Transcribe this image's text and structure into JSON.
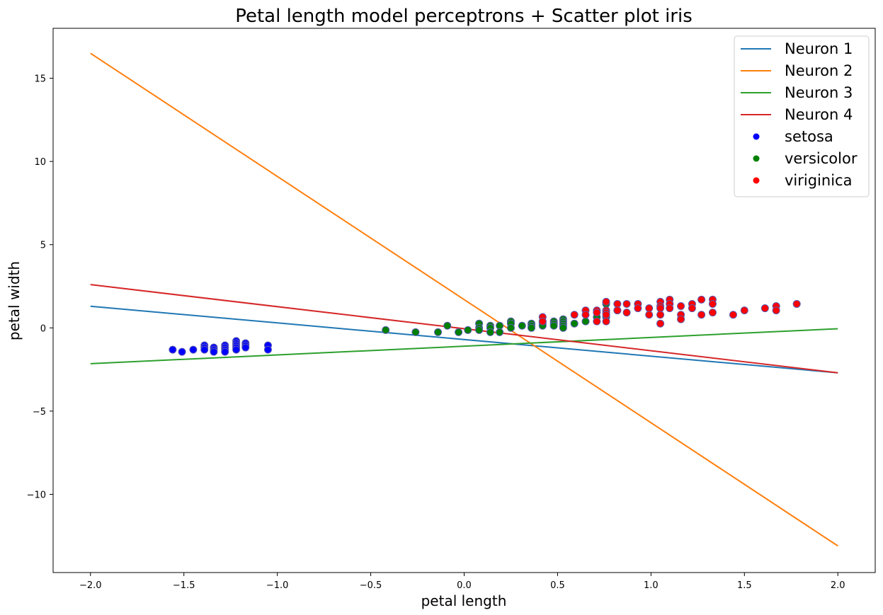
{
  "chart_data": {
    "type": "scatter",
    "title": "Petal length model perceptrons + Scatter plot iris",
    "xlabel": "petal length",
    "ylabel": "petal width",
    "xlim": [
      -2.2,
      2.2
    ],
    "ylim": [
      -14.7,
      18.0
    ],
    "xticks": [
      -2.0,
      -1.5,
      -1.0,
      -0.5,
      0.0,
      0.5,
      1.0,
      1.5,
      2.0
    ],
    "xtick_labels": [
      "−2.0",
      "−1.5",
      "−1.0",
      "−0.5",
      "0.0",
      "0.5",
      "1.0",
      "1.5",
      "2.0"
    ],
    "yticks": [
      -10,
      -5,
      0,
      5,
      10,
      15
    ],
    "ytick_labels": [
      "−10",
      "−5",
      "0",
      "5",
      "10",
      "15"
    ],
    "legend_position": "top-right",
    "lines": [
      {
        "name": "Neuron 1",
        "color": "#1f77b4",
        "x": [
          -2.0,
          2.0
        ],
        "y": [
          1.3,
          -2.7
        ]
      },
      {
        "name": "Neuron 2",
        "color": "#ff7f0e",
        "x": [
          -2.0,
          2.0
        ],
        "y": [
          16.5,
          -13.1
        ]
      },
      {
        "name": "Neuron 3",
        "color": "#2ca02c",
        "x": [
          -2.0,
          2.0
        ],
        "y": [
          -2.15,
          -0.05
        ]
      },
      {
        "name": "Neuron 4",
        "color": "#d62728",
        "x": [
          -2.0,
          2.0
        ],
        "y": [
          2.6,
          -2.7
        ]
      }
    ],
    "scatter": [
      {
        "name": "setosa",
        "color": "#0000ff",
        "points": [
          [
            -1.56,
            -1.31
          ],
          [
            -1.51,
            -1.44
          ],
          [
            -1.45,
            -1.31
          ],
          [
            -1.39,
            -1.05
          ],
          [
            -1.39,
            -1.18
          ],
          [
            -1.39,
            -1.31
          ],
          [
            -1.34,
            -1.18
          ],
          [
            -1.34,
            -1.31
          ],
          [
            -1.34,
            -1.44
          ],
          [
            -1.28,
            -1.05
          ],
          [
            -1.28,
            -1.18
          ],
          [
            -1.28,
            -1.31
          ],
          [
            -1.28,
            -1.44
          ],
          [
            -1.22,
            -0.79
          ],
          [
            -1.22,
            -0.92
          ],
          [
            -1.22,
            -1.05
          ],
          [
            -1.22,
            -1.18
          ],
          [
            -1.22,
            -1.31
          ],
          [
            -1.17,
            -0.92
          ],
          [
            -1.17,
            -1.05
          ],
          [
            -1.17,
            -1.18
          ],
          [
            -1.05,
            -1.05
          ],
          [
            -1.05,
            -1.31
          ]
        ]
      },
      {
        "name": "versicolor",
        "color": "#008000",
        "points": [
          [
            -0.42,
            -0.13
          ],
          [
            -0.26,
            -0.26
          ],
          [
            -0.14,
            -0.26
          ],
          [
            -0.09,
            0.13
          ],
          [
            -0.03,
            -0.26
          ],
          [
            0.02,
            -0.13
          ],
          [
            0.08,
            0.26
          ],
          [
            0.08,
            0.0
          ],
          [
            0.08,
            -0.13
          ],
          [
            0.14,
            0.13
          ],
          [
            0.14,
            0.0
          ],
          [
            0.14,
            -0.26
          ],
          [
            0.19,
            0.13
          ],
          [
            0.19,
            -0.26
          ],
          [
            0.25,
            0.39
          ],
          [
            0.25,
            0.26
          ],
          [
            0.25,
            0.0
          ],
          [
            0.31,
            0.13
          ],
          [
            0.36,
            0.26
          ],
          [
            0.36,
            0.13
          ],
          [
            0.36,
            0.0
          ],
          [
            0.42,
            0.39
          ],
          [
            0.42,
            0.26
          ],
          [
            0.42,
            0.13
          ],
          [
            0.48,
            0.39
          ],
          [
            0.48,
            0.26
          ],
          [
            0.48,
            0.13
          ],
          [
            0.53,
            0.52
          ],
          [
            0.53,
            0.39
          ],
          [
            0.53,
            0.26
          ],
          [
            0.53,
            0.13
          ],
          [
            0.53,
            0.0
          ],
          [
            0.59,
            0.26
          ],
          [
            0.65,
            0.39
          ],
          [
            0.71,
            0.65
          ],
          [
            0.76,
            0.65
          ],
          [
            0.76,
            1.44
          ],
          [
            0.82,
            1.05
          ]
        ]
      },
      {
        "name": "viriginica",
        "color": "#ff0000",
        "points": [
          [
            0.42,
            0.65
          ],
          [
            0.42,
            0.39
          ],
          [
            0.59,
            0.79
          ],
          [
            0.65,
            1.05
          ],
          [
            0.65,
            0.79
          ],
          [
            0.71,
            1.05
          ],
          [
            0.71,
            0.92
          ],
          [
            0.71,
            0.39
          ],
          [
            0.76,
            1.57
          ],
          [
            0.76,
            1.05
          ],
          [
            0.76,
            0.92
          ],
          [
            0.76,
            0.79
          ],
          [
            0.76,
            0.39
          ],
          [
            0.82,
            1.44
          ],
          [
            0.82,
            1.05
          ],
          [
            0.87,
            1.44
          ],
          [
            0.87,
            0.92
          ],
          [
            0.93,
            1.44
          ],
          [
            0.93,
            1.18
          ],
          [
            0.99,
            1.18
          ],
          [
            0.99,
            0.79
          ],
          [
            1.05,
            1.57
          ],
          [
            1.05,
            1.31
          ],
          [
            1.05,
            1.18
          ],
          [
            1.05,
            0.79
          ],
          [
            1.05,
            0.26
          ],
          [
            1.1,
            1.7
          ],
          [
            1.1,
            1.44
          ],
          [
            1.1,
            1.18
          ],
          [
            1.16,
            1.31
          ],
          [
            1.16,
            0.79
          ],
          [
            1.16,
            0.52
          ],
          [
            1.22,
            1.44
          ],
          [
            1.22,
            1.18
          ],
          [
            1.27,
            1.7
          ],
          [
            1.27,
            0.79
          ],
          [
            1.33,
            1.7
          ],
          [
            1.33,
            1.44
          ],
          [
            1.33,
            0.92
          ],
          [
            1.44,
            0.79
          ],
          [
            1.5,
            1.05
          ],
          [
            1.61,
            1.18
          ],
          [
            1.67,
            1.31
          ],
          [
            1.67,
            1.05
          ],
          [
            1.78,
            1.44
          ]
        ]
      }
    ]
  }
}
